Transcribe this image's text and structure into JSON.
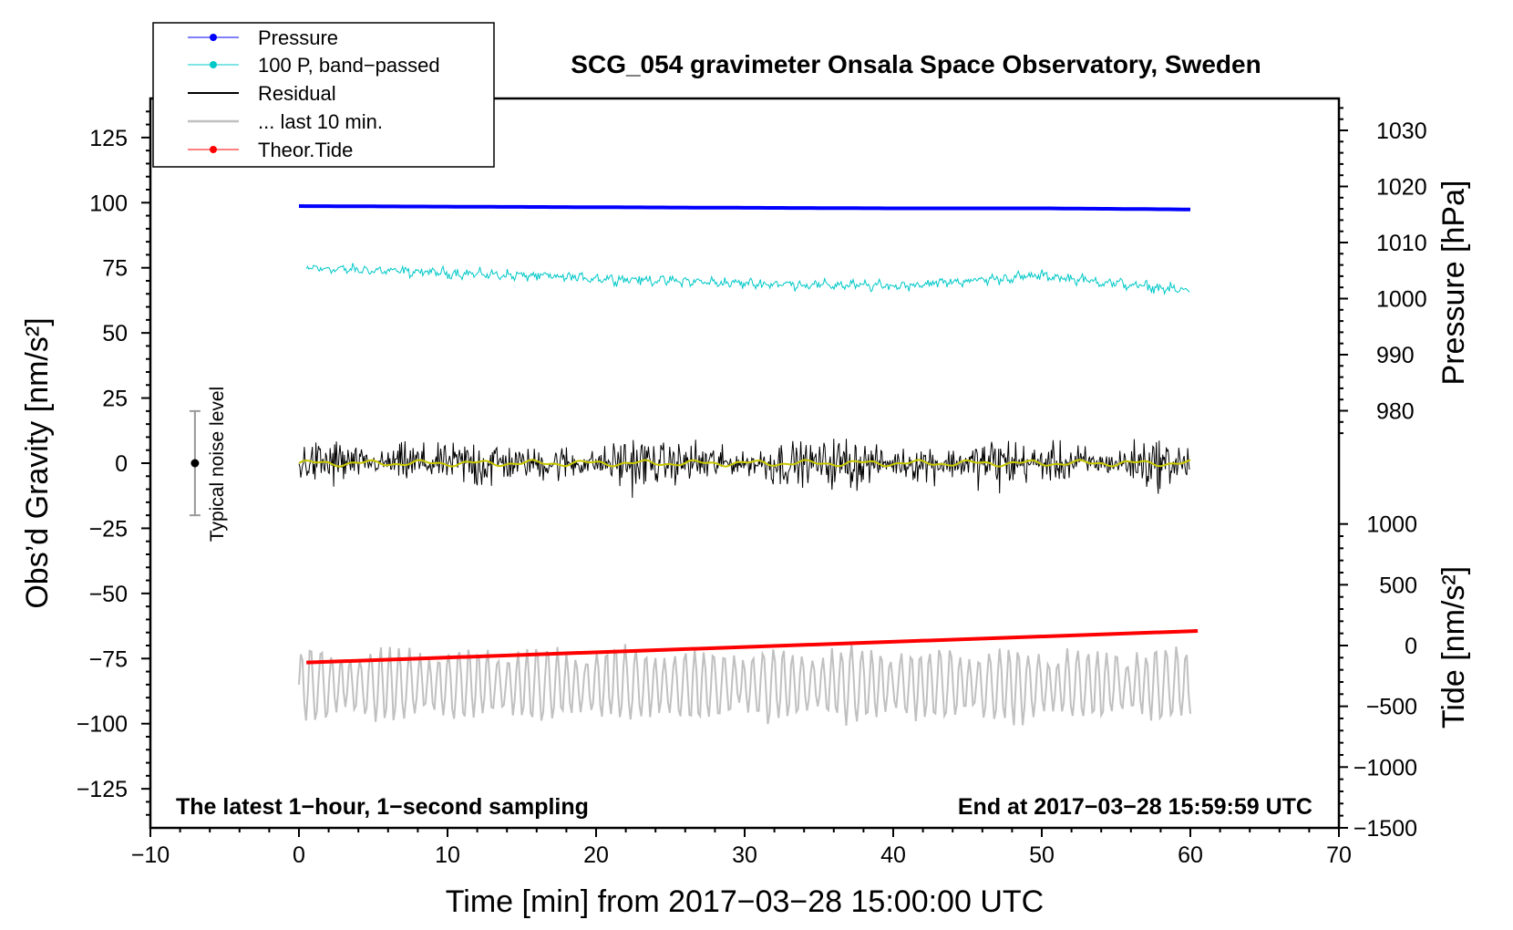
{
  "chart_data": {
    "type": "line",
    "title": "SCG_054 gravimeter Onsala Space Observatory, Sweden",
    "xlabel": "Time [min] from 2017−03−28 15:00:00 UTC",
    "xlim": [
      -10,
      70
    ],
    "xticks": [
      -10,
      0,
      10,
      20,
      30,
      40,
      50,
      60,
      70
    ],
    "xtick_labels": [
      "−10",
      "0",
      "10",
      "20",
      "30",
      "40",
      "50",
      "60",
      "70"
    ],
    "left_axis": {
      "label": "Obs’d Gravity [nm/s²]",
      "ylim": [
        -140,
        140
      ],
      "ticks": [
        125,
        100,
        75,
        50,
        25,
        0,
        -25,
        -50,
        -75,
        -100,
        -125
      ],
      "tick_labels": [
        "125",
        "100",
        "75",
        "50",
        "25",
        "0",
        "−25",
        "−50",
        "−75",
        "−100",
        "−125"
      ]
    },
    "right_pressure_axis": {
      "label": "Pressure [hPa]",
      "ticks": [
        1030,
        1020,
        1010,
        1000,
        990,
        980
      ],
      "tick_labels": [
        "1030",
        "1020",
        "1010",
        "1000",
        "990",
        "980"
      ]
    },
    "right_tide_axis": {
      "label": "Tide [nm/s²]",
      "ticks": [
        1000,
        500,
        0,
        -500,
        -1000,
        -1500
      ],
      "tick_labels": [
        "1000",
        "500",
        "0",
        "−500",
        "−1000",
        "−1500"
      ]
    },
    "series": [
      {
        "name": "Pressure",
        "color": "#0000ff",
        "x": [
          0,
          10,
          20,
          30,
          40,
          50,
          60
        ],
        "y_hPa": [
          1016.5,
          1016.4,
          1016.3,
          1016.2,
          1016.1,
          1016.1,
          1015.9
        ]
      },
      {
        "name": "100 P, band−passed",
        "color": "#00c8c8",
        "x": [
          0,
          10,
          20,
          30,
          40,
          50,
          60
        ],
        "y": [
          75,
          73,
          71,
          69,
          68,
          72,
          66
        ]
      },
      {
        "name": "Residual",
        "color": "#000000",
        "x": [
          0,
          60
        ],
        "y": [
          0,
          0
        ],
        "note": "noise envelope approx ±15 nm/s²"
      },
      {
        "name": "... last 10 min.",
        "color": "#c0c0c0",
        "x": [
          0,
          60
        ],
        "y": [
          -85,
          -85
        ]
      },
      {
        "name": "Theor.Tide",
        "color": "#ff0000",
        "x": [
          0,
          60
        ],
        "y_tide": [
          -140,
          120
        ]
      }
    ],
    "noise_bar": {
      "label": "Typical noise level",
      "x": -7,
      "y": 0,
      "range": [
        -20,
        20
      ]
    },
    "annotations": {
      "bottom_left": "The latest 1−hour, 1−second sampling",
      "bottom_right": "End at 2017−03−28 15:59:59 UTC"
    },
    "legend": {
      "placement": "top-left",
      "entries": [
        "Pressure",
        "100 P, band−passed",
        "Residual",
        "... last 10 min.",
        "Theor.Tide"
      ]
    }
  }
}
